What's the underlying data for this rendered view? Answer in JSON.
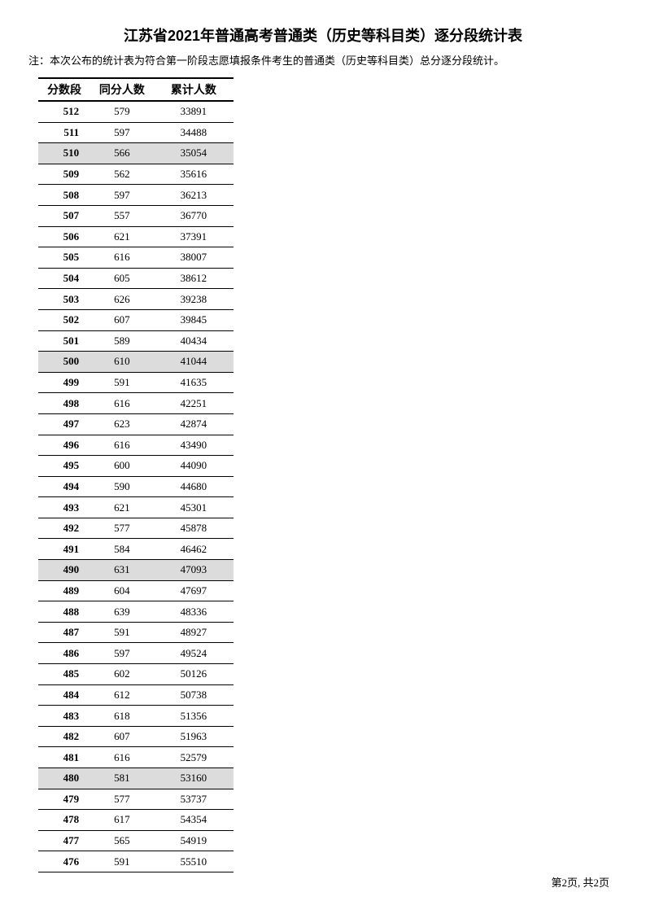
{
  "title": "江苏省2021年普通高考普通类（历史等科目类）逐分段统计表",
  "note": "注：本次公布的统计表为符合第一阶段志愿填报条件考生的普通类（历史等科目类）总分逐分段统计。",
  "columns": {
    "score": "分数段",
    "count": "同分人数",
    "cumulative": "累计人数"
  },
  "highlight_scores": [
    510,
    500,
    490,
    480
  ],
  "rows": [
    {
      "score": 512,
      "count": 579,
      "cumulative": 33891
    },
    {
      "score": 511,
      "count": 597,
      "cumulative": 34488
    },
    {
      "score": 510,
      "count": 566,
      "cumulative": 35054
    },
    {
      "score": 509,
      "count": 562,
      "cumulative": 35616
    },
    {
      "score": 508,
      "count": 597,
      "cumulative": 36213
    },
    {
      "score": 507,
      "count": 557,
      "cumulative": 36770
    },
    {
      "score": 506,
      "count": 621,
      "cumulative": 37391
    },
    {
      "score": 505,
      "count": 616,
      "cumulative": 38007
    },
    {
      "score": 504,
      "count": 605,
      "cumulative": 38612
    },
    {
      "score": 503,
      "count": 626,
      "cumulative": 39238
    },
    {
      "score": 502,
      "count": 607,
      "cumulative": 39845
    },
    {
      "score": 501,
      "count": 589,
      "cumulative": 40434
    },
    {
      "score": 500,
      "count": 610,
      "cumulative": 41044
    },
    {
      "score": 499,
      "count": 591,
      "cumulative": 41635
    },
    {
      "score": 498,
      "count": 616,
      "cumulative": 42251
    },
    {
      "score": 497,
      "count": 623,
      "cumulative": 42874
    },
    {
      "score": 496,
      "count": 616,
      "cumulative": 43490
    },
    {
      "score": 495,
      "count": 600,
      "cumulative": 44090
    },
    {
      "score": 494,
      "count": 590,
      "cumulative": 44680
    },
    {
      "score": 493,
      "count": 621,
      "cumulative": 45301
    },
    {
      "score": 492,
      "count": 577,
      "cumulative": 45878
    },
    {
      "score": 491,
      "count": 584,
      "cumulative": 46462
    },
    {
      "score": 490,
      "count": 631,
      "cumulative": 47093
    },
    {
      "score": 489,
      "count": 604,
      "cumulative": 47697
    },
    {
      "score": 488,
      "count": 639,
      "cumulative": 48336
    },
    {
      "score": 487,
      "count": 591,
      "cumulative": 48927
    },
    {
      "score": 486,
      "count": 597,
      "cumulative": 49524
    },
    {
      "score": 485,
      "count": 602,
      "cumulative": 50126
    },
    {
      "score": 484,
      "count": 612,
      "cumulative": 50738
    },
    {
      "score": 483,
      "count": 618,
      "cumulative": 51356
    },
    {
      "score": 482,
      "count": 607,
      "cumulative": 51963
    },
    {
      "score": 481,
      "count": 616,
      "cumulative": 52579
    },
    {
      "score": 480,
      "count": 581,
      "cumulative": 53160
    },
    {
      "score": 479,
      "count": 577,
      "cumulative": 53737
    },
    {
      "score": 478,
      "count": 617,
      "cumulative": 54354
    },
    {
      "score": 477,
      "count": 565,
      "cumulative": 54919
    },
    {
      "score": 476,
      "count": 591,
      "cumulative": 55510
    }
  ],
  "footer": "第2页, 共2页",
  "colors": {
    "background": "#ffffff",
    "text": "#000000",
    "highlight_bg": "#dcdcdc",
    "border": "#000000"
  },
  "fonts": {
    "title_size": 18,
    "note_size": 13,
    "header_size": 14,
    "cell_size": 13,
    "footer_size": 13
  }
}
